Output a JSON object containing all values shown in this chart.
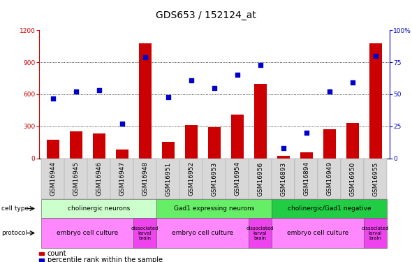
{
  "title": "GDS653 / 152124_at",
  "samples": [
    "GSM16944",
    "GSM16945",
    "GSM16946",
    "GSM16947",
    "GSM16948",
    "GSM16951",
    "GSM16952",
    "GSM16953",
    "GSM16954",
    "GSM16956",
    "GSM16893",
    "GSM16894",
    "GSM16949",
    "GSM16950",
    "GSM16955"
  ],
  "counts": [
    175,
    255,
    235,
    85,
    1075,
    155,
    310,
    295,
    410,
    700,
    25,
    55,
    275,
    330,
    1075
  ],
  "percentile_ranks": [
    47,
    52,
    53,
    27,
    79,
    48,
    61,
    55,
    65,
    73,
    8,
    20,
    52,
    59,
    80
  ],
  "bar_color": "#cc0000",
  "dot_color": "#0000cc",
  "ylim_left": [
    0,
    1200
  ],
  "ylim_right": [
    0,
    100
  ],
  "yticks_left": [
    0,
    300,
    600,
    900,
    1200
  ],
  "yticks_right": [
    0,
    25,
    50,
    75,
    100
  ],
  "cell_types": [
    {
      "label": "cholinergic neurons",
      "start": 0,
      "end": 5,
      "color": "#ccffcc"
    },
    {
      "label": "Gad1 expressing neurons",
      "start": 5,
      "end": 10,
      "color": "#66ee66"
    },
    {
      "label": "cholinergic/Gad1 negative",
      "start": 10,
      "end": 15,
      "color": "#22cc44"
    }
  ],
  "protocols": [
    {
      "label": "embryo cell culture",
      "start": 0,
      "end": 4,
      "color": "#ff88ff"
    },
    {
      "label": "dissociated\nlarval\nbrain",
      "start": 4,
      "end": 5,
      "color": "#ee44ee"
    },
    {
      "label": "embryo cell culture",
      "start": 5,
      "end": 9,
      "color": "#ff88ff"
    },
    {
      "label": "dissociated\nlarval\nbrain",
      "start": 9,
      "end": 10,
      "color": "#ee44ee"
    },
    {
      "label": "embryo cell culture",
      "start": 10,
      "end": 14,
      "color": "#ff88ff"
    },
    {
      "label": "dissociated\nlarval\nbrain",
      "start": 14,
      "end": 15,
      "color": "#ee44ee"
    }
  ],
  "legend_count_color": "#cc0000",
  "legend_pct_color": "#0000cc",
  "background_color": "#ffffff",
  "title_fontsize": 10,
  "tick_fontsize": 6.5,
  "anno_fontsize": 7,
  "axis_label_color_left": "#cc0000",
  "axis_label_color_right": "#0000cc",
  "xtick_bg": "#d8d8d8",
  "bar_width": 0.55
}
